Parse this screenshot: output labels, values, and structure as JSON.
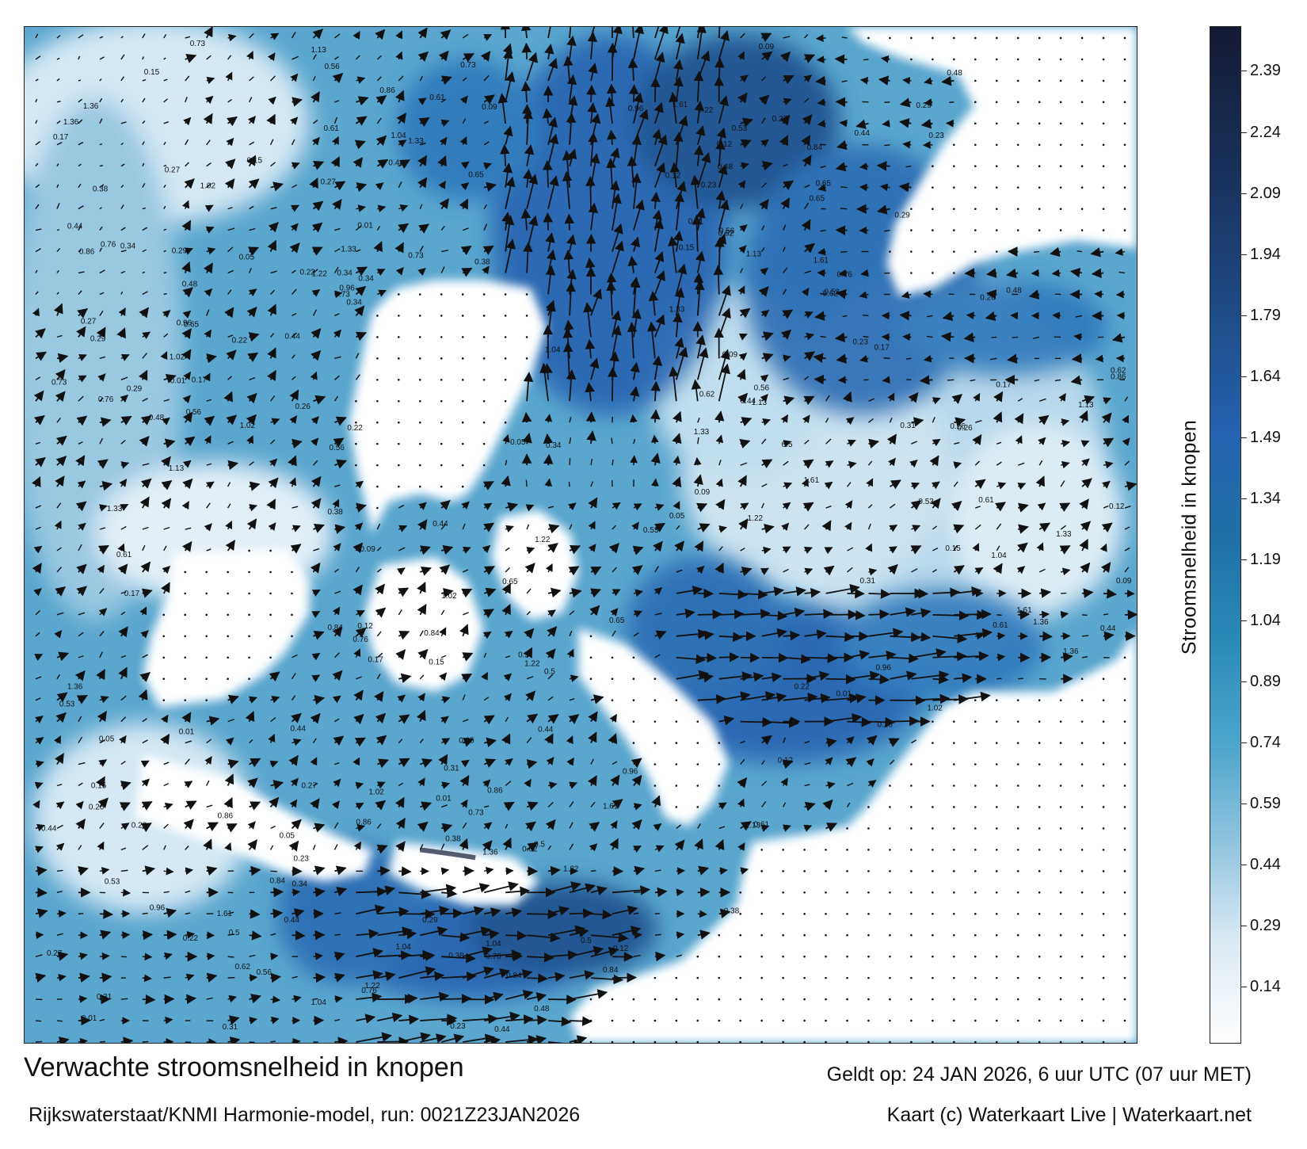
{
  "footer": {
    "title": "Verwachte stroomsnelheid in knopen",
    "model": "Rijkswaterstaat/KNMI Harmonie-model, run: 0021Z23JAN2026",
    "valid": "Geldt op: 24 JAN 2026, 6 uur UTC (07 uur MET)",
    "credit": "Kaart (c) Waterkaart Live | Waterkaart.net"
  },
  "colorbar": {
    "title": "Stroomsnelheid in knopen",
    "ticks": [
      "2.39",
      "2.24",
      "2.09",
      "1.94",
      "1.79",
      "1.64",
      "1.49",
      "1.34",
      "1.19",
      "1.04",
      "0.89",
      "0.74",
      "0.59",
      "0.44",
      "0.29",
      "0.14"
    ],
    "min": 0.0,
    "max": 2.5,
    "colors": [
      "#ffffff",
      "#dbe9f3",
      "#8dc3de",
      "#4aa3cb",
      "#2b88b7",
      "#1f6fa6",
      "#2563b0",
      "#1f4f8d",
      "#1b3c6d",
      "#17294f",
      "#151a33"
    ]
  },
  "map": {
    "sea_color": "#4f9cc8",
    "deep_color": "#2462aa",
    "land_color": "#ffffff",
    "arrow_color": "#111111",
    "speed_samples": [
      {
        "label": "0.27"
      },
      {
        "label": "0.17"
      },
      {
        "label": "0.12"
      },
      {
        "label": "0.26"
      },
      {
        "label": "0.15"
      },
      {
        "label": "0.23"
      },
      {
        "label": "0.29"
      },
      {
        "label": "0.44"
      },
      {
        "label": "0.48"
      },
      {
        "label": "0.5"
      },
      {
        "label": "0.73"
      },
      {
        "label": "0.86"
      },
      {
        "label": "1.04"
      },
      {
        "label": "1.22"
      },
      {
        "label": "1.36"
      },
      {
        "label": "1.13"
      },
      {
        "label": "0.84"
      },
      {
        "label": "0.96"
      },
      {
        "label": "1.02"
      },
      {
        "label": "0.76"
      },
      {
        "label": "0.65"
      },
      {
        "label": "0.53"
      },
      {
        "label": "0.38"
      },
      {
        "label": "0.34"
      },
      {
        "label": "0.22"
      },
      {
        "label": "0.09"
      },
      {
        "label": "0.05"
      },
      {
        "label": "0.01"
      },
      {
        "label": "1.33"
      },
      {
        "label": "1.61"
      },
      {
        "label": "0.62"
      },
      {
        "label": "0.61"
      },
      {
        "label": "0.56"
      },
      {
        "label": "0.44"
      },
      {
        "label": "0.31"
      }
    ]
  }
}
